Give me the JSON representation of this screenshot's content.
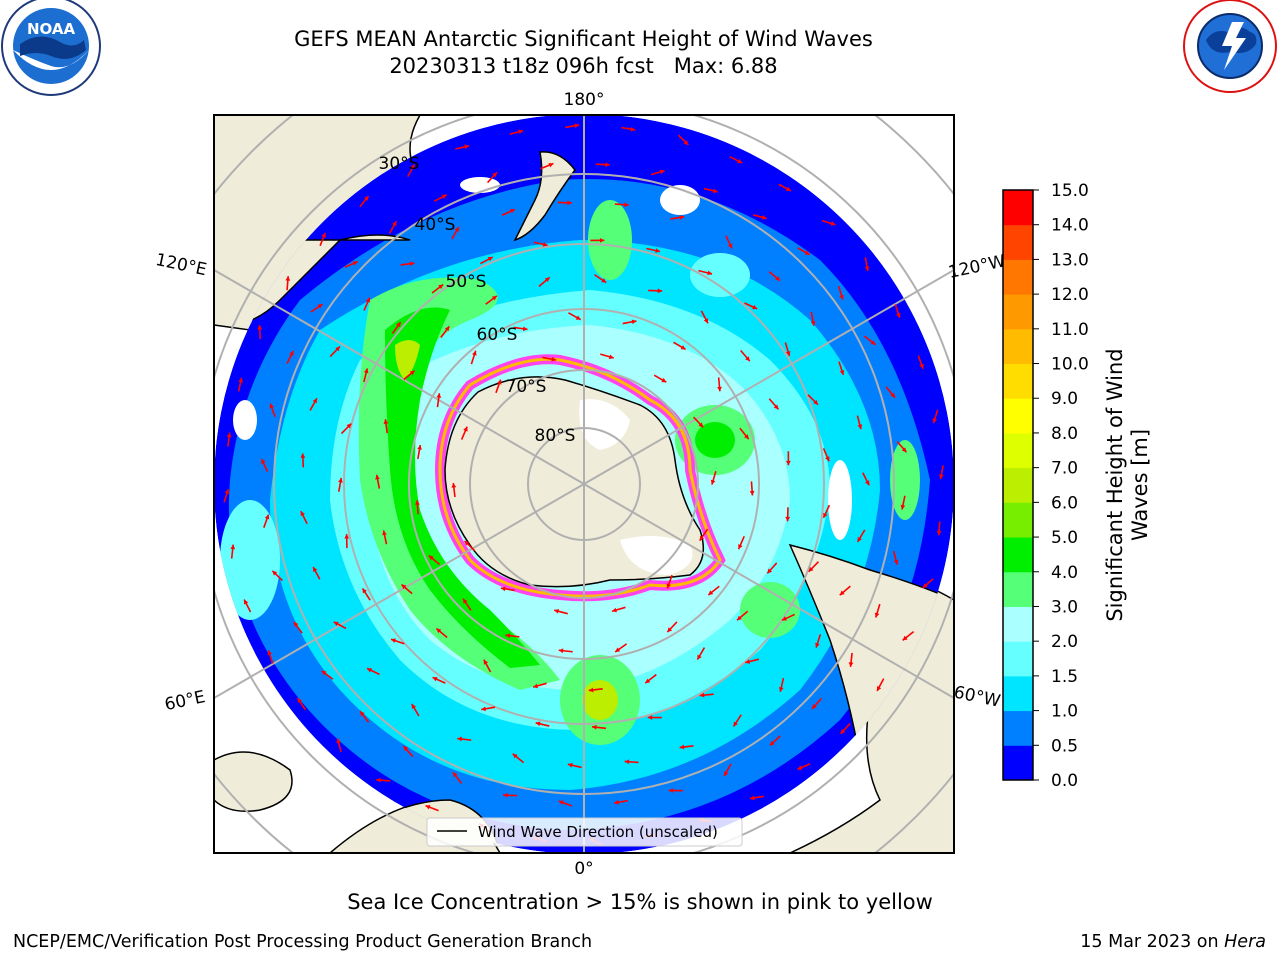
{
  "title": {
    "line1": "GEFS MEAN Antarctic Significant Height of Wind Waves",
    "line2": "20230313 t18z 096h fcst   Max: 6.88"
  },
  "logos": {
    "left": {
      "text": "NOAA",
      "ring_text": "NATIONAL OCEANIC AND ATMOSPHERIC ADMINISTRATION · U.S. DEPARTMENT OF COMMERCE"
    },
    "right": {
      "ring_text": "NATIONAL WEATHER SERVICE"
    }
  },
  "map": {
    "projection": "south polar stereographic",
    "longitude_labels": {
      "top": "180°",
      "bottom": "0°",
      "upper_left": "120°E",
      "upper_right": "120°W",
      "lower_left": "60°E",
      "lower_right": "60°W"
    },
    "latitude_labels": [
      "30°S",
      "40°S",
      "50°S",
      "60°S",
      "70°S",
      "80°S"
    ],
    "colors": {
      "land": "#efedd9",
      "ice_edge": "#ff44ee",
      "arrows": "#ff0000",
      "grid": "#b0b0b0"
    },
    "legend": {
      "label": "Wind Wave Direction (unscaled)"
    }
  },
  "colorbar": {
    "label_line1": "Significant Height of Wind",
    "label_line2": "Waves [m]",
    "ticks": [
      "0.0",
      "0.5",
      "1.0",
      "1.5",
      "2.0",
      "3.0",
      "4.0",
      "5.0",
      "6.0",
      "7.0",
      "8.0",
      "9.0",
      "10.0",
      "11.0",
      "12.0",
      "13.0",
      "14.0",
      "15.0"
    ],
    "colors": [
      "#0000ff",
      "#0080ff",
      "#00e5ff",
      "#66ffff",
      "#aaffff",
      "#55ff77",
      "#00ee00",
      "#77ee00",
      "#bbee00",
      "#ddff00",
      "#ffff00",
      "#ffdd00",
      "#ffbb00",
      "#ff9900",
      "#ff7700",
      "#ff4400",
      "#ff0000"
    ]
  },
  "footer": {
    "note": "Sea Ice Concentration > 15% is shown in pink to yellow",
    "left": "NCEP/EMC/Verification Post Processing Product Generation Branch",
    "right_date": "15 Mar 2023 on ",
    "right_machine": "Hera"
  }
}
